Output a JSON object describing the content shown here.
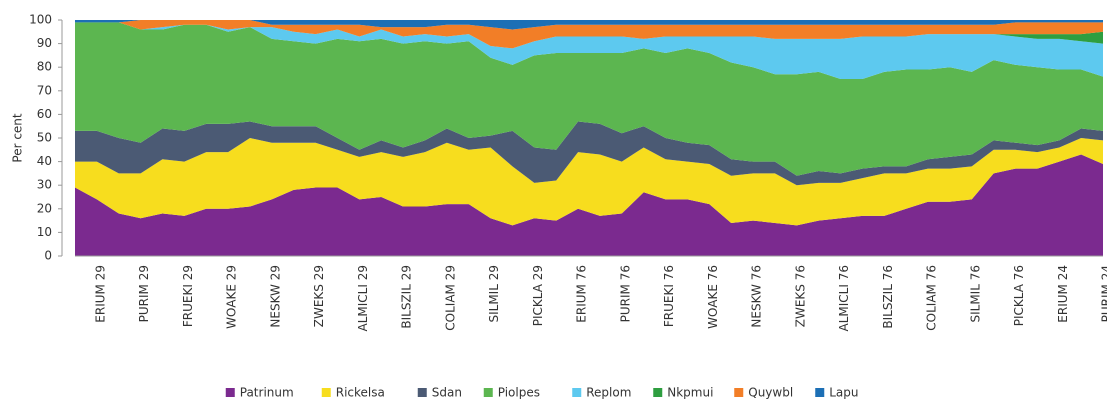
{
  "chart_data": {
    "type": "stacked_area",
    "ylabel": "Per cent",
    "categories": [
      null,
      "ERIUM 29",
      null,
      "PURIM 29",
      null,
      "FRUEKI 29",
      null,
      "WOAKE 29",
      null,
      "NESKW 29",
      null,
      "ZWEKS 29",
      null,
      "ALMICLI 29",
      null,
      "BILSZIL 29",
      null,
      "COLIAM 29",
      null,
      "SILMIL 29",
      null,
      "PICKLA 29",
      null,
      "ERIUM 76",
      null,
      "PURIM 76",
      null,
      "FRUEKI 76",
      null,
      "WOAKE 76",
      null,
      "NESKW 76",
      null,
      "ZWEKS 76",
      null,
      "ALMICLI 76",
      null,
      "BILSZIL 76",
      null,
      "COLIAM 76",
      null,
      "SILMIL 76",
      null,
      "PICKLA 76",
      null,
      "ERIUM  24",
      null,
      "PURIM 24"
    ],
    "series": [
      {
        "name": "Patrinum",
        "color": "#7b2a8f",
        "values": [
          29,
          24,
          18,
          16,
          18,
          17,
          20,
          20,
          21,
          24,
          28,
          29,
          29,
          24,
          25,
          21,
          21,
          22,
          22,
          16,
          13,
          16,
          15,
          20,
          17,
          18,
          27,
          24,
          24,
          22,
          14,
          15,
          14,
          13,
          15,
          16,
          17,
          17,
          20,
          23,
          23,
          24,
          35,
          37,
          37,
          40,
          43,
          39
        ]
      },
      {
        "name": "Rickelsa",
        "color": "#f7dd1e",
        "values": [
          11,
          16,
          17,
          19,
          23,
          23,
          24,
          24,
          29,
          24,
          20,
          19,
          16,
          18,
          19,
          21,
          23,
          26,
          23,
          30,
          25,
          15,
          17,
          24,
          26,
          22,
          19,
          17,
          16,
          17,
          20,
          20,
          21,
          17,
          16,
          15,
          16,
          18,
          15,
          14,
          14,
          14,
          10,
          8,
          7,
          6,
          7,
          10
        ]
      },
      {
        "name": "Sdan",
        "color": "#4b5a74",
        "values": [
          13,
          13,
          15,
          13,
          13,
          13,
          12,
          12,
          7,
          7,
          7,
          7,
          5,
          3,
          5,
          4,
          5,
          6,
          5,
          5,
          15,
          15,
          13,
          13,
          13,
          12,
          9,
          9,
          8,
          8,
          7,
          5,
          5,
          4,
          5,
          4,
          4,
          3,
          3,
          4,
          5,
          5,
          4,
          3,
          3,
          3,
          4,
          4
        ]
      },
      {
        "name": "Piolpes",
        "color": "#5cb650",
        "values": [
          46,
          46,
          49,
          48,
          42,
          45,
          42,
          39,
          40,
          37,
          36,
          35,
          42,
          46,
          43,
          44,
          42,
          36,
          41,
          33,
          28,
          39,
          41,
          29,
          30,
          34,
          33,
          36,
          40,
          39,
          41,
          40,
          37,
          43,
          42,
          40,
          38,
          40,
          41,
          38,
          38,
          35,
          34,
          33,
          33,
          30,
          25,
          23
        ]
      },
      {
        "name": "Replom",
        "color": "#5dc9ef",
        "values": [
          0,
          0,
          0,
          0,
          1,
          0,
          0,
          1,
          0,
          5,
          4,
          4,
          4,
          2,
          4,
          3,
          3,
          3,
          3,
          5,
          7,
          6,
          7,
          7,
          7,
          7,
          4,
          7,
          5,
          7,
          11,
          13,
          15,
          15,
          14,
          17,
          18,
          15,
          14,
          15,
          14,
          16,
          11,
          12,
          12,
          13,
          12,
          14
        ]
      },
      {
        "name": "Nkpmui",
        "color": "#2e9e40",
        "values": [
          0,
          0,
          0,
          0,
          0,
          0,
          0,
          0,
          0,
          0,
          0,
          0,
          0,
          0,
          0,
          0,
          0,
          0,
          0,
          0,
          0,
          0,
          0,
          0,
          0,
          0,
          0,
          0,
          0,
          0,
          0,
          0,
          0,
          0,
          0,
          0,
          0,
          0,
          0,
          0,
          0,
          0,
          0,
          1,
          2,
          2,
          3,
          5
        ]
      },
      {
        "name": "Quywbl",
        "color": "#f27e27",
        "values": [
          0,
          0,
          0,
          4,
          3,
          2,
          2,
          4,
          3,
          1,
          3,
          4,
          2,
          5,
          1,
          4,
          3,
          5,
          4,
          8,
          8,
          6,
          5,
          5,
          5,
          5,
          6,
          5,
          5,
          5,
          5,
          5,
          6,
          6,
          6,
          6,
          5,
          5,
          5,
          4,
          4,
          4,
          4,
          5,
          5,
          5,
          5,
          4
        ]
      },
      {
        "name": "Lapu",
        "color": "#1c6fb5",
        "values": [
          1,
          1,
          1,
          0,
          0,
          0,
          0,
          0,
          0,
          2,
          2,
          2,
          2,
          2,
          3,
          3,
          3,
          2,
          2,
          3,
          4,
          3,
          2,
          2,
          2,
          2,
          2,
          2,
          2,
          2,
          2,
          2,
          2,
          2,
          2,
          2,
          2,
          2,
          2,
          2,
          2,
          2,
          2,
          1,
          1,
          1,
          1,
          1
        ]
      }
    ],
    "ylim": [
      0,
      100
    ],
    "yticks": [
      0,
      10,
      20,
      30,
      40,
      50,
      60,
      70,
      80,
      90,
      100
    ]
  }
}
